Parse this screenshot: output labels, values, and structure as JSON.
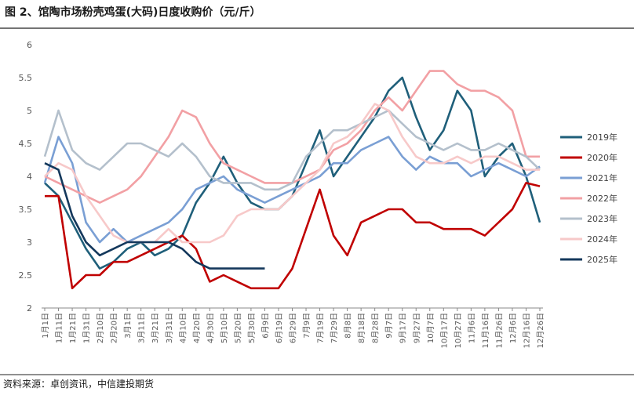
{
  "chart_data": {
    "type": "line",
    "title": "图 2、馆陶市场粉壳鸡蛋(大码)日度收购价（元/斤）",
    "source": "资料来源：卓创资讯，中信建投期货",
    "categories": [
      "1月1日",
      "1月11日",
      "1月21日",
      "1月31日",
      "2月10日",
      "2月20日",
      "3月1日",
      "3月11日",
      "3月21日",
      "3月31日",
      "4月10日",
      "4月20日",
      "4月30日",
      "5月10日",
      "5月20日",
      "5月30日",
      "6月9日",
      "6月19日",
      "6月29日",
      "7月9日",
      "7月19日",
      "7月29日",
      "8月8日",
      "8月18日",
      "8月28日",
      "9月7日",
      "9月17日",
      "9月27日",
      "10月7日",
      "10月17日",
      "10月27日",
      "11月6日",
      "11月16日",
      "11月26日",
      "12月6日",
      "12月16日",
      "12月26日"
    ],
    "ylim": [
      2,
      6
    ],
    "yticks": [
      2,
      2.5,
      3,
      3.5,
      4,
      4.5,
      5,
      5.5,
      6
    ],
    "grid": false,
    "legend": "right",
    "series": [
      {
        "name": "2019年",
        "color": "#1f5f7a",
        "values": [
          3.9,
          3.7,
          3.3,
          2.9,
          2.6,
          2.7,
          2.9,
          3.0,
          2.8,
          2.9,
          3.1,
          3.6,
          3.9,
          4.3,
          3.9,
          3.6,
          3.5,
          3.5,
          3.7,
          4.2,
          4.7,
          4.0,
          4.3,
          4.6,
          4.9,
          5.3,
          5.5,
          4.9,
          4.4,
          4.7,
          5.3,
          5.0,
          4.0,
          4.3,
          4.5,
          4.0,
          3.3
        ]
      },
      {
        "name": "2020年",
        "color": "#c00000",
        "values": [
          3.7,
          3.7,
          2.3,
          2.5,
          2.5,
          2.7,
          2.7,
          2.8,
          2.9,
          3.0,
          3.1,
          2.9,
          2.4,
          2.5,
          2.4,
          2.3,
          2.3,
          2.3,
          2.6,
          3.2,
          3.8,
          3.1,
          2.8,
          3.3,
          3.4,
          3.5,
          3.5,
          3.3,
          3.3,
          3.2,
          3.2,
          3.2,
          3.1,
          3.3,
          3.5,
          3.9,
          3.85
        ]
      },
      {
        "name": "2021年",
        "color": "#7a9fd4",
        "values": [
          3.9,
          4.6,
          4.2,
          3.3,
          3.0,
          3.2,
          3.0,
          3.1,
          3.2,
          3.3,
          3.5,
          3.8,
          3.9,
          4.0,
          3.8,
          3.7,
          3.6,
          3.7,
          3.8,
          3.9,
          4.0,
          4.2,
          4.2,
          4.4,
          4.5,
          4.6,
          4.3,
          4.1,
          4.3,
          4.2,
          4.2,
          4.0,
          4.1,
          4.2,
          4.1,
          4.0,
          4.15
        ]
      },
      {
        "name": "2022年",
        "color": "#f2a0a4",
        "values": [
          4.0,
          3.9,
          3.8,
          3.7,
          3.6,
          3.7,
          3.8,
          4.0,
          4.3,
          4.6,
          5.0,
          4.9,
          4.5,
          4.2,
          4.1,
          4.0,
          3.9,
          3.9,
          3.9,
          4.0,
          4.1,
          4.4,
          4.5,
          4.7,
          5.0,
          5.2,
          5.0,
          5.3,
          5.6,
          5.6,
          5.4,
          5.3,
          5.3,
          5.2,
          5.0,
          4.3,
          4.3
        ]
      },
      {
        "name": "2023年",
        "color": "#b4c0cc",
        "values": [
          4.3,
          5.0,
          4.4,
          4.2,
          4.1,
          4.3,
          4.5,
          4.5,
          4.4,
          4.3,
          4.5,
          4.3,
          4.0,
          3.9,
          3.9,
          3.9,
          3.8,
          3.8,
          3.9,
          4.3,
          4.5,
          4.7,
          4.7,
          4.8,
          4.9,
          5.0,
          4.8,
          4.6,
          4.5,
          4.4,
          4.5,
          4.4,
          4.4,
          4.5,
          4.4,
          4.3,
          4.1
        ]
      },
      {
        "name": "2024年",
        "color": "#f7c9c9",
        "values": [
          4.0,
          4.2,
          4.1,
          3.7,
          3.4,
          3.1,
          3.0,
          3.0,
          3.0,
          3.2,
          3.0,
          3.0,
          3.0,
          3.1,
          3.4,
          3.5,
          3.5,
          3.5,
          3.7,
          3.9,
          4.1,
          4.5,
          4.6,
          4.8,
          5.1,
          5.0,
          4.6,
          4.3,
          4.2,
          4.2,
          4.3,
          4.2,
          4.3,
          4.3,
          4.2,
          4.1,
          4.1
        ]
      },
      {
        "name": "2025年",
        "color": "#14385c",
        "values": [
          4.2,
          4.1,
          3.4,
          3.0,
          2.8,
          2.9,
          3.0,
          3.0,
          3.0,
          3.0,
          2.9,
          2.7,
          2.6,
          2.6,
          2.6,
          2.6,
          2.6,
          null,
          null,
          null,
          null,
          null,
          null,
          null,
          null,
          null,
          null,
          null,
          null,
          null,
          null,
          null,
          null,
          null,
          null,
          null,
          null
        ]
      }
    ]
  }
}
